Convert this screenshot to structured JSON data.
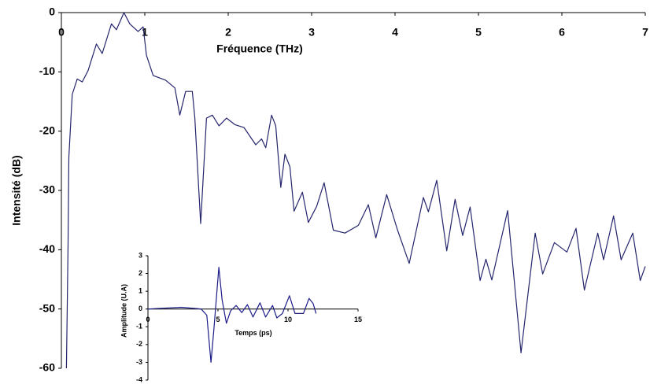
{
  "chart_data": [
    {
      "type": "line",
      "x_label": "Fréquence (THz)",
      "y_label": "Intensité (dB)",
      "color": "#25256e",
      "x": [
        0.06,
        0.08,
        0.09,
        0.13,
        0.19,
        0.25,
        0.32,
        0.42,
        0.49,
        0.6,
        0.66,
        0.75,
        0.82,
        0.92,
        0.98,
        1.02,
        1.1,
        1.25,
        1.36,
        1.42,
        1.49,
        1.57,
        1.6,
        1.67,
        1.74,
        1.81,
        1.89,
        1.98,
        2.08,
        2.19,
        2.33,
        2.4,
        2.45,
        2.52,
        2.57,
        2.63,
        2.68,
        2.74,
        2.79,
        2.89,
        2.96,
        3.06,
        3.15,
        3.26,
        3.4,
        3.56,
        3.68,
        3.77,
        3.9,
        4.03,
        4.17,
        4.34,
        4.4,
        4.5,
        4.62,
        4.72,
        4.81,
        4.9,
        5.02,
        5.09,
        5.16,
        5.35,
        5.51,
        5.68,
        5.77,
        5.91,
        6.06,
        6.17,
        6.27,
        6.43,
        6.5,
        6.62,
        6.71,
        6.85,
        6.94,
        7.0
      ],
      "values": [
        -60,
        -39,
        -24.4,
        -13.8,
        -11.2,
        -11.7,
        -9.8,
        -5.3,
        -6.9,
        -1.9,
        -2.9,
        0,
        -1.9,
        -3.2,
        -2.4,
        -7.2,
        -10.6,
        -11.4,
        -12.7,
        -17.3,
        -13.3,
        -13.3,
        -17.8,
        -35.6,
        -17.8,
        -17.3,
        -19.1,
        -17.8,
        -18.9,
        -19.4,
        -22.3,
        -21.3,
        -22.8,
        -17.3,
        -19.1,
        -29.5,
        -23.9,
        -26,
        -33.5,
        -30.3,
        -35.4,
        -32.7,
        -28.7,
        -36.7,
        -37.2,
        -35.9,
        -32.4,
        -38,
        -30.7,
        -36.7,
        -42.3,
        -31.2,
        -33.6,
        -28.3,
        -40.2,
        -31.5,
        -37.6,
        -32.8,
        -45.2,
        -41.6,
        -45.1,
        -33.4,
        -57.4,
        -37.2,
        -44.1,
        -38.8,
        -40.4,
        -36.4,
        -46.8,
        -37.2,
        -41.7,
        -34.3,
        -41.7,
        -37.2,
        -45.2,
        -42.8
      ],
      "xlim": [
        0,
        7
      ],
      "xticks": [
        0,
        1,
        2,
        3,
        4,
        5,
        6,
        7
      ],
      "ylim": [
        -60,
        0
      ],
      "yticks": [
        0,
        -10,
        -20,
        -30,
        -40,
        -50,
        -60
      ]
    },
    {
      "type": "line",
      "x_label": "Temps (ps)",
      "y_label": "Amplitude (U.A)",
      "color": "#1c1c88",
      "x": [
        0,
        2.4,
        3.8,
        4.2,
        4.5,
        4.7,
        5.06,
        5.3,
        5.6,
        5.9,
        6.3,
        6.7,
        7.1,
        7.5,
        8,
        8.4,
        8.9,
        9.2,
        9.6,
        10.1,
        10.5,
        11.1,
        11.5,
        11.8,
        12
      ],
      "values": [
        0,
        0.1,
        0,
        -0.35,
        -3,
        -1.2,
        2.35,
        0.5,
        -0.8,
        -0.1,
        0.2,
        -0.2,
        0.25,
        -0.45,
        0.35,
        -0.45,
        0.2,
        -0.5,
        -0.25,
        0.75,
        -0.25,
        -0.25,
        0.6,
        0.3,
        -0.25
      ],
      "xlim": [
        0,
        15
      ],
      "xticks": [
        0,
        5,
        10,
        15
      ],
      "ylim": [
        -4,
        3
      ],
      "yticks": [
        3,
        2,
        1,
        0,
        -1,
        -2,
        -3,
        -4
      ]
    }
  ]
}
